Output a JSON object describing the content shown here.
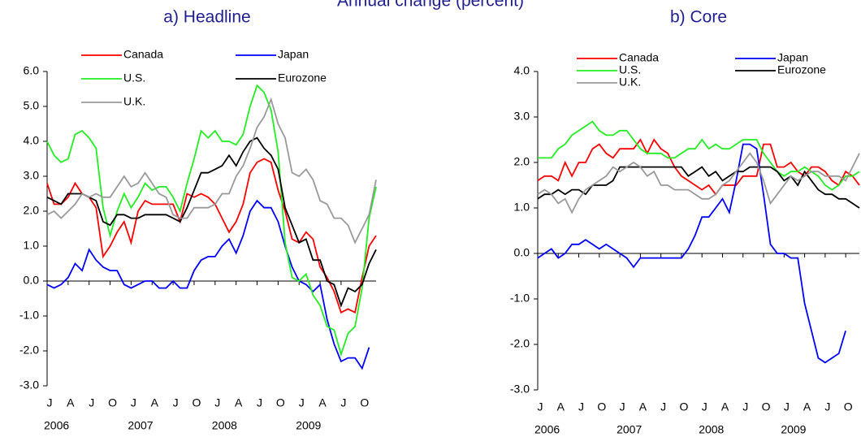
{
  "title": "Annual change (percent)",
  "chart_data": [
    {
      "type": "line",
      "title": "a) Headline",
      "categories": [
        "J",
        null,
        null,
        "A",
        null,
        null,
        "J",
        null,
        null,
        "O",
        null,
        null,
        "J",
        null,
        null,
        "A",
        null,
        null,
        "J",
        null,
        null,
        "O",
        null,
        null,
        "J",
        null,
        null,
        "A",
        null,
        null,
        "J",
        null,
        null,
        "O",
        null,
        null,
        "J",
        null,
        null,
        "A",
        null,
        null,
        "J",
        null,
        null,
        "O",
        null,
        null
      ],
      "year_labels": [
        "2006",
        "2007",
        "2008",
        "2009"
      ],
      "ylim": [
        -3,
        6
      ],
      "yticks": [
        {
          "value": 6,
          "label": "6.0"
        },
        {
          "value": 5,
          "label": "5.0"
        },
        {
          "value": 4,
          "label": "4.0"
        },
        {
          "value": 3,
          "label": "3.0"
        },
        {
          "value": 2,
          "label": "2.0"
        },
        {
          "value": 1,
          "label": "1.0"
        },
        {
          "value": 0,
          "label": "0.0"
        },
        {
          "value": -1,
          "label": "-1.0"
        },
        {
          "value": -2,
          "label": "-2.0"
        },
        {
          "value": -3,
          "label": "-3.0"
        }
      ],
      "grid": false,
      "series": [
        {
          "name": "Canada",
          "color": "#ff0000",
          "values": [
            2.8,
            2.2,
            2.2,
            2.4,
            2.8,
            2.5,
            2.4,
            2.1,
            0.7,
            1.0,
            1.4,
            1.7,
            1.1,
            2.0,
            2.3,
            2.2,
            2.2,
            2.2,
            2.2,
            1.7,
            2.5,
            2.4,
            2.5,
            2.4,
            2.2,
            1.8,
            1.4,
            1.7,
            2.2,
            3.1,
            3.4,
            3.5,
            3.4,
            2.6,
            2.0,
            1.2,
            1.1,
            1.4,
            1.2,
            0.4,
            0.1,
            -0.3,
            -0.9,
            -0.8,
            -0.9,
            0.1,
            1.0,
            1.3
          ]
        },
        {
          "name": "Japan",
          "color": "#0000ff",
          "values": [
            -0.1,
            -0.2,
            -0.1,
            0.1,
            0.5,
            0.3,
            0.9,
            0.6,
            0.4,
            0.3,
            0.3,
            -0.1,
            -0.2,
            -0.1,
            0.0,
            0.0,
            -0.2,
            -0.2,
            0.0,
            -0.2,
            -0.2,
            0.3,
            0.6,
            0.7,
            0.7,
            1.0,
            1.2,
            0.8,
            1.3,
            2.0,
            2.3,
            2.1,
            2.1,
            1.7,
            1.0,
            0.4,
            0.0,
            -0.1,
            -0.3,
            -0.1,
            -1.1,
            -1.8,
            -2.3,
            -2.2,
            -2.2,
            -2.5,
            -1.9,
            null
          ]
        },
        {
          "name": "U.S.",
          "color": "#22ee22",
          "values": [
            4.0,
            3.6,
            3.4,
            3.5,
            4.2,
            4.3,
            4.1,
            3.8,
            2.1,
            1.3,
            2.0,
            2.5,
            2.1,
            2.4,
            2.8,
            2.6,
            2.7,
            2.7,
            2.4,
            2.0,
            2.8,
            3.5,
            4.3,
            4.1,
            4.3,
            4.0,
            4.0,
            3.9,
            4.2,
            5.0,
            5.6,
            5.4,
            4.9,
            3.7,
            1.1,
            0.1,
            0.0,
            0.2,
            -0.4,
            -0.7,
            -1.3,
            -1.4,
            -2.1,
            -1.5,
            -1.3,
            -0.2,
            1.8,
            2.7
          ]
        },
        {
          "name": "Eurozone",
          "color": "#000000",
          "values": [
            2.4,
            2.3,
            2.2,
            2.5,
            2.5,
            2.5,
            2.4,
            2.3,
            1.7,
            1.6,
            1.9,
            1.9,
            1.8,
            1.8,
            1.9,
            1.9,
            1.9,
            1.9,
            1.8,
            1.7,
            2.1,
            2.6,
            3.1,
            3.1,
            3.2,
            3.3,
            3.6,
            3.3,
            3.7,
            4.0,
            4.1,
            3.8,
            3.6,
            3.2,
            2.1,
            1.6,
            1.1,
            1.2,
            0.6,
            0.6,
            0.0,
            -0.1,
            -0.7,
            -0.2,
            -0.3,
            -0.1,
            0.5,
            0.9
          ]
        },
        {
          "name": "U.K.",
          "color": "#999999",
          "values": [
            1.9,
            2.0,
            1.8,
            2.0,
            2.2,
            2.5,
            2.4,
            2.5,
            2.4,
            2.4,
            2.7,
            3.0,
            2.7,
            2.8,
            3.1,
            2.8,
            2.5,
            2.4,
            1.9,
            1.8,
            1.8,
            2.1,
            2.1,
            2.1,
            2.2,
            2.5,
            2.5,
            3.0,
            3.3,
            3.8,
            4.4,
            4.7,
            5.2,
            4.5,
            4.1,
            3.1,
            3.0,
            3.2,
            2.9,
            2.3,
            2.2,
            1.8,
            1.8,
            1.6,
            1.1,
            1.5,
            1.9,
            2.9
          ]
        }
      ]
    },
    {
      "type": "line",
      "title": "b) Core",
      "categories": [
        "J",
        null,
        null,
        "A",
        null,
        null,
        "J",
        null,
        null,
        "O",
        null,
        null,
        "J",
        null,
        null,
        "A",
        null,
        null,
        "J",
        null,
        null,
        "O",
        null,
        null,
        "J",
        null,
        null,
        "A",
        null,
        null,
        "J",
        null,
        null,
        "O",
        null,
        null,
        "J",
        null,
        null,
        "A",
        null,
        null,
        "J",
        null,
        null,
        "O",
        null,
        null
      ],
      "year_labels": [
        "2006",
        "2007",
        "2008",
        "2009"
      ],
      "ylim": [
        -3,
        4
      ],
      "yticks": [
        {
          "value": 4,
          "label": "4.0"
        },
        {
          "value": 3,
          "label": "3.0"
        },
        {
          "value": 2,
          "label": "2.0"
        },
        {
          "value": 1,
          "label": "1.0"
        },
        {
          "value": 0,
          "label": "0.0"
        },
        {
          "value": -1,
          "label": "-1.0"
        },
        {
          "value": -2,
          "label": "-2.0"
        },
        {
          "value": -3,
          "label": "-3.0"
        }
      ],
      "grid": false,
      "series": [
        {
          "name": "Canada",
          "color": "#ff0000",
          "values": [
            1.6,
            1.7,
            1.7,
            1.6,
            2.0,
            1.7,
            2.0,
            2.0,
            2.3,
            2.4,
            2.2,
            2.1,
            2.3,
            2.3,
            2.3,
            2.5,
            2.2,
            2.5,
            2.3,
            2.2,
            1.9,
            1.7,
            1.6,
            1.5,
            1.4,
            1.5,
            1.3,
            1.5,
            1.5,
            1.5,
            1.7,
            1.7,
            1.7,
            2.4,
            2.4,
            1.9,
            1.9,
            2.0,
            1.8,
            1.7,
            1.9,
            1.9,
            1.8,
            1.6,
            1.5,
            1.8,
            1.7,
            1.5
          ]
        },
        {
          "name": "Japan",
          "color": "#0000ff",
          "values": [
            -0.1,
            0.0,
            0.1,
            -0.1,
            0.0,
            0.2,
            0.2,
            0.3,
            0.2,
            0.1,
            0.2,
            0.1,
            0.0,
            -0.1,
            -0.3,
            -0.1,
            -0.1,
            -0.1,
            -0.1,
            -0.1,
            -0.1,
            -0.1,
            0.1,
            0.4,
            0.8,
            0.8,
            1.0,
            1.2,
            0.9,
            1.6,
            2.4,
            2.4,
            2.3,
            1.3,
            0.2,
            0.0,
            0.0,
            -0.1,
            -0.1,
            -1.1,
            -1.7,
            -2.3,
            -2.4,
            -2.3,
            -2.2,
            -1.7,
            null,
            null
          ]
        },
        {
          "name": "U.S.",
          "color": "#22ee22",
          "values": [
            2.1,
            2.1,
            2.1,
            2.3,
            2.4,
            2.6,
            2.7,
            2.8,
            2.9,
            2.7,
            2.6,
            2.6,
            2.7,
            2.7,
            2.5,
            2.3,
            2.2,
            2.2,
            2.2,
            2.1,
            2.1,
            2.2,
            2.3,
            2.3,
            2.5,
            2.3,
            2.4,
            2.3,
            2.3,
            2.4,
            2.5,
            2.5,
            2.5,
            2.2,
            2.0,
            1.8,
            1.7,
            1.8,
            1.8,
            1.9,
            1.8,
            1.7,
            1.5,
            1.4,
            1.5,
            1.7,
            1.7,
            1.8
          ]
        },
        {
          "name": "Eurozone",
          "color": "#000000",
          "values": [
            1.2,
            1.3,
            1.3,
            1.4,
            1.3,
            1.4,
            1.4,
            1.3,
            1.5,
            1.5,
            1.5,
            1.6,
            1.9,
            1.9,
            1.9,
            1.9,
            1.9,
            1.9,
            1.9,
            1.9,
            1.9,
            1.9,
            1.7,
            1.8,
            1.9,
            1.7,
            1.8,
            1.6,
            1.7,
            1.8,
            1.8,
            1.9,
            1.9,
            1.9,
            1.9,
            1.8,
            1.6,
            1.7,
            1.5,
            1.8,
            1.6,
            1.4,
            1.3,
            1.3,
            1.2,
            1.2,
            1.1,
            1.0
          ]
        },
        {
          "name": "U.K.",
          "color": "#999999",
          "values": [
            1.3,
            1.4,
            1.3,
            1.1,
            1.2,
            0.9,
            1.2,
            1.4,
            1.5,
            1.6,
            1.7,
            1.9,
            1.8,
            1.9,
            2.0,
            1.9,
            1.7,
            1.8,
            1.5,
            1.5,
            1.4,
            1.4,
            1.4,
            1.3,
            1.2,
            1.2,
            1.3,
            1.5,
            1.6,
            1.8,
            2.0,
            2.2,
            2.0,
            1.6,
            1.1,
            1.3,
            1.5,
            1.7,
            1.6,
            1.7,
            1.8,
            1.8,
            1.7,
            1.7,
            1.7,
            1.6,
            1.9,
            2.2
          ]
        }
      ]
    }
  ]
}
